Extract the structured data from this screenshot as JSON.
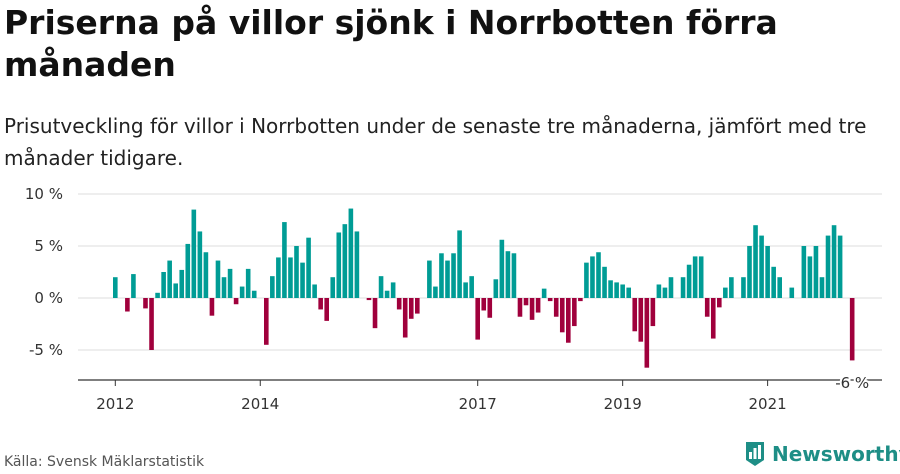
{
  "title": "Priserna på villor sjönk i Norrbotten förra månaden",
  "subtitle": "Prisutveckling för villor i Norrbotten under de senaste tre månaderna, jämfört med tre månader tidigare.",
  "source": "Källa: Svensk Mäklarstatistik",
  "brand": {
    "name": "Newsworthy",
    "icon": "newsworthy-logo-icon"
  },
  "colors": {
    "positive": "#009c95",
    "negative": "#a0003c",
    "grid": "#dddddd",
    "text": "#333333"
  },
  "chart_data": {
    "type": "bar",
    "title": "",
    "xlabel": "",
    "ylabel": "",
    "unit": "%",
    "ylim": [
      -8,
      10.5
    ],
    "yticks": [
      10,
      5,
      0,
      -5
    ],
    "ytick_labels": [
      "10 %",
      "5 %",
      "0 %",
      "-5 %"
    ],
    "start": "2012-01",
    "xticks": [
      {
        "label": "2012",
        "index": 0
      },
      {
        "label": "2014",
        "index": 24
      },
      {
        "label": "2017",
        "index": 60
      },
      {
        "label": "2019",
        "index": 84
      },
      {
        "label": "2021",
        "index": 108
      }
    ],
    "values": [
      2.0,
      0.0,
      -1.3,
      2.3,
      0.0,
      -1.0,
      -5.0,
      0.5,
      2.5,
      3.6,
      1.4,
      2.7,
      5.2,
      8.5,
      6.4,
      4.4,
      -1.7,
      3.6,
      2.0,
      2.8,
      -0.6,
      1.1,
      2.8,
      0.7,
      0.0,
      -4.5,
      2.1,
      3.9,
      7.3,
      3.9,
      5.0,
      3.4,
      5.8,
      1.3,
      -1.1,
      -2.2,
      2.0,
      6.3,
      7.1,
      8.6,
      6.4,
      0.0,
      -0.2,
      -2.9,
      2.1,
      0.7,
      1.5,
      -1.1,
      -3.8,
      -2.0,
      -1.5,
      0.0,
      3.6,
      1.1,
      4.3,
      3.6,
      4.3,
      6.5,
      1.5,
      2.1,
      -4.0,
      -1.2,
      -1.9,
      1.8,
      5.6,
      4.5,
      4.3,
      -1.8,
      -0.7,
      -2.1,
      -1.4,
      0.9,
      -0.3,
      -1.8,
      -3.3,
      -4.3,
      -2.7,
      -0.3,
      3.4,
      4.0,
      4.4,
      3.0,
      1.7,
      1.5,
      1.3,
      1.0,
      -3.2,
      -4.2,
      -6.7,
      -2.7,
      1.3,
      1.0,
      2.0,
      0.0,
      2.0,
      3.2,
      4.0,
      4.0,
      -1.8,
      -3.9,
      -0.9,
      1.0,
      2.0,
      0.0,
      2.0,
      5.0,
      7.0,
      6.0,
      5.0,
      3.0,
      2.0,
      0.0,
      1.0,
      0.0,
      5.0,
      4.0,
      5.0,
      2.0,
      6.0,
      7.0,
      6.0,
      0.0,
      -6.0
    ],
    "annotation": {
      "label": "-6 %",
      "index": 122
    }
  }
}
